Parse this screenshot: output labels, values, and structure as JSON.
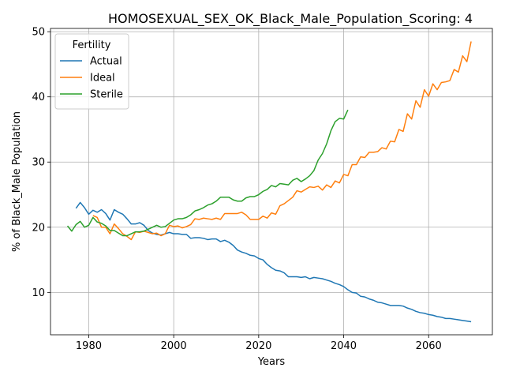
{
  "chart_data": {
    "type": "line",
    "title": "HOMOSEXUAL_SEX_OK_Black_Male_Population_Scoring: 4",
    "xlabel": "Years",
    "ylabel": "% of Black_Male Population",
    "xlim": [
      1971,
      2075
    ],
    "ylim": [
      3.5,
      50.5
    ],
    "xticks": [
      1980,
      2000,
      2020,
      2040,
      2060
    ],
    "yticks": [
      10,
      20,
      30,
      40,
      50
    ],
    "grid": true,
    "legend": {
      "title": "Fertility",
      "position": "top-left"
    },
    "series": [
      {
        "name": "Actual",
        "color": "#1f77b4",
        "x": [
          1977,
          1978,
          1979,
          1980,
          1981,
          1982,
          1983,
          1984,
          1985,
          1986,
          1987,
          1988,
          1989,
          1990,
          1991,
          1992,
          1993,
          1994,
          1995,
          1996,
          1997,
          1998,
          1999,
          2000,
          2001,
          2002,
          2003,
          2004,
          2005,
          2006,
          2007,
          2008,
          2009,
          2010,
          2011,
          2012,
          2013,
          2014,
          2015,
          2016,
          2017,
          2018,
          2019,
          2020,
          2021,
          2022,
          2023,
          2024,
          2025,
          2026,
          2027,
          2028,
          2029,
          2030,
          2031,
          2032,
          2033,
          2034,
          2035,
          2036,
          2037,
          2038,
          2039,
          2040,
          2041,
          2042,
          2043,
          2044,
          2045,
          2046,
          2047,
          2048,
          2049,
          2050,
          2051,
          2052,
          2053,
          2054,
          2055,
          2056,
          2057,
          2058,
          2059,
          2060,
          2061,
          2062,
          2063,
          2064,
          2065,
          2066,
          2067,
          2068,
          2069,
          2070
        ],
        "values": [
          22.9,
          23.8,
          23.0,
          22.0,
          22.6,
          22.3,
          22.7,
          22.1,
          21.1,
          22.7,
          22.3,
          22.0,
          21.3,
          20.5,
          20.5,
          20.7,
          20.3,
          19.5,
          19.1,
          18.9,
          18.8,
          19.0,
          19.2,
          19.0,
          19.0,
          18.9,
          18.9,
          18.3,
          18.4,
          18.4,
          18.3,
          18.1,
          18.2,
          18.2,
          17.8,
          18.0,
          17.7,
          17.2,
          16.5,
          16.2,
          16.0,
          15.7,
          15.6,
          15.2,
          15.0,
          14.3,
          13.8,
          13.4,
          13.3,
          13.0,
          12.4,
          12.4,
          12.4,
          12.3,
          12.4,
          12.1,
          12.3,
          12.2,
          12.1,
          11.9,
          11.7,
          11.4,
          11.2,
          10.9,
          10.4,
          10.0,
          9.9,
          9.4,
          9.3,
          9.0,
          8.8,
          8.5,
          8.4,
          8.2,
          8.0,
          8.0,
          8.0,
          7.9,
          7.6,
          7.4,
          7.1,
          6.9,
          6.8,
          6.6,
          6.5,
          6.3,
          6.2,
          6.0,
          6.0,
          5.9,
          5.8,
          5.7,
          5.6,
          5.5
        ]
      },
      {
        "name": "Ideal",
        "color": "#ff7f0e",
        "x": [
          1981,
          1982,
          1983,
          1984,
          1985,
          1986,
          1987,
          1988,
          1989,
          1990,
          1991,
          1992,
          1993,
          1994,
          1995,
          1996,
          1997,
          1998,
          1999,
          2000,
          2001,
          2002,
          2003,
          2004,
          2005,
          2006,
          2007,
          2008,
          2009,
          2010,
          2011,
          2012,
          2013,
          2014,
          2015,
          2016,
          2017,
          2018,
          2019,
          2020,
          2021,
          2022,
          2023,
          2024,
          2025,
          2026,
          2027,
          2028,
          2029,
          2030,
          2031,
          2032,
          2033,
          2034,
          2035,
          2036,
          2037,
          2038,
          2039,
          2040,
          2041,
          2042,
          2043,
          2044,
          2045,
          2046,
          2047,
          2048,
          2049,
          2050,
          2051,
          2052,
          2053,
          2054,
          2055,
          2056,
          2057,
          2058,
          2059,
          2060,
          2061,
          2062,
          2063,
          2064,
          2065,
          2066,
          2067,
          2068,
          2069,
          2070
        ],
        "values": [
          21.8,
          21.5,
          20.0,
          20.0,
          19.0,
          20.5,
          19.8,
          19.0,
          18.6,
          18.1,
          19.3,
          19.2,
          19.4,
          19.2,
          19.0,
          19.1,
          18.7,
          19.0,
          20.3,
          20.1,
          20.2,
          19.9,
          20.1,
          20.4,
          21.3,
          21.2,
          21.4,
          21.3,
          21.2,
          21.4,
          21.2,
          22.1,
          22.1,
          22.1,
          22.1,
          22.3,
          21.9,
          21.2,
          21.2,
          21.2,
          21.7,
          21.4,
          22.2,
          22.0,
          23.3,
          23.6,
          24.1,
          24.6,
          25.6,
          25.4,
          25.8,
          26.2,
          26.1,
          26.3,
          25.7,
          26.5,
          26.1,
          27.1,
          26.8,
          28.1,
          27.9,
          29.6,
          29.6,
          30.8,
          30.7,
          31.5,
          31.5,
          31.6,
          32.2,
          32.0,
          33.2,
          33.1,
          35.0,
          34.7,
          37.4,
          36.6,
          39.4,
          38.4,
          41.1,
          40.1,
          42.0,
          41.1,
          42.2,
          42.3,
          42.5,
          44.2,
          43.8,
          46.3,
          45.4,
          48.5
        ]
      },
      {
        "name": "Sterile",
        "color": "#2ca02c",
        "x": [
          1975,
          1976,
          1977,
          1978,
          1979,
          1980,
          1981,
          1982,
          1983,
          1984,
          1985,
          1986,
          1987,
          1988,
          1989,
          1990,
          1991,
          1992,
          1993,
          1994,
          1995,
          1996,
          1997,
          1998,
          1999,
          2000,
          2001,
          2002,
          2003,
          2004,
          2005,
          2006,
          2007,
          2008,
          2009,
          2010,
          2011,
          2012,
          2013,
          2014,
          2015,
          2016,
          2017,
          2018,
          2019,
          2020,
          2021,
          2022,
          2023,
          2024,
          2025,
          2026,
          2027,
          2028,
          2029,
          2030,
          2031,
          2032,
          2033,
          2034,
          2035,
          2036,
          2037,
          2038,
          2039,
          2040,
          2041
        ],
        "values": [
          20.2,
          19.4,
          20.4,
          20.9,
          20.0,
          20.3,
          21.5,
          20.8,
          20.6,
          20.2,
          19.5,
          19.5,
          19.1,
          18.7,
          18.7,
          19.0,
          19.3,
          19.3,
          19.4,
          19.7,
          20.0,
          20.3,
          20.0,
          20.1,
          20.6,
          21.1,
          21.3,
          21.3,
          21.5,
          21.9,
          22.5,
          22.7,
          23.0,
          23.4,
          23.6,
          24.0,
          24.6,
          24.6,
          24.6,
          24.2,
          24.0,
          24.0,
          24.5,
          24.7,
          24.7,
          25.0,
          25.5,
          25.8,
          26.4,
          26.2,
          26.7,
          26.6,
          26.5,
          27.2,
          27.5,
          27.0,
          27.4,
          27.9,
          28.7,
          30.3,
          31.3,
          32.8,
          34.8,
          36.2,
          36.7,
          36.6,
          38.0
        ]
      }
    ]
  }
}
